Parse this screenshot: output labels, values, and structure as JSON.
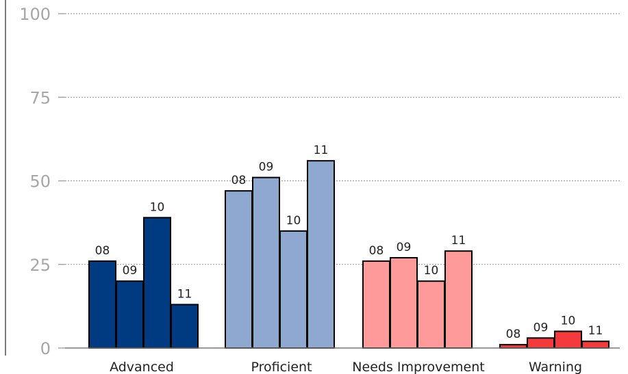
{
  "chart_data": {
    "type": "bar",
    "title": "",
    "xlabel": "",
    "ylabel": "",
    "ylim": [
      0,
      100
    ],
    "yticks": [
      0,
      25,
      50,
      75,
      100
    ],
    "grid": true,
    "legend": "none",
    "categories": [
      "Advanced",
      "Proficient",
      "Needs Improvement",
      "Warning"
    ],
    "series_labels": [
      "08",
      "09",
      "10",
      "11"
    ],
    "groups": [
      {
        "category": "Advanced",
        "color": "#003a80",
        "values": [
          26,
          20,
          39,
          13
        ]
      },
      {
        "category": "Proficient",
        "color": "#8ea8d0",
        "values": [
          47,
          51,
          35,
          56
        ]
      },
      {
        "category": "Needs Improvement",
        "color": "#ff9a9a",
        "values": [
          26,
          27,
          20,
          29
        ]
      },
      {
        "category": "Warning",
        "color": "#f43a3a",
        "values": [
          1,
          3,
          5,
          2
        ]
      }
    ]
  }
}
